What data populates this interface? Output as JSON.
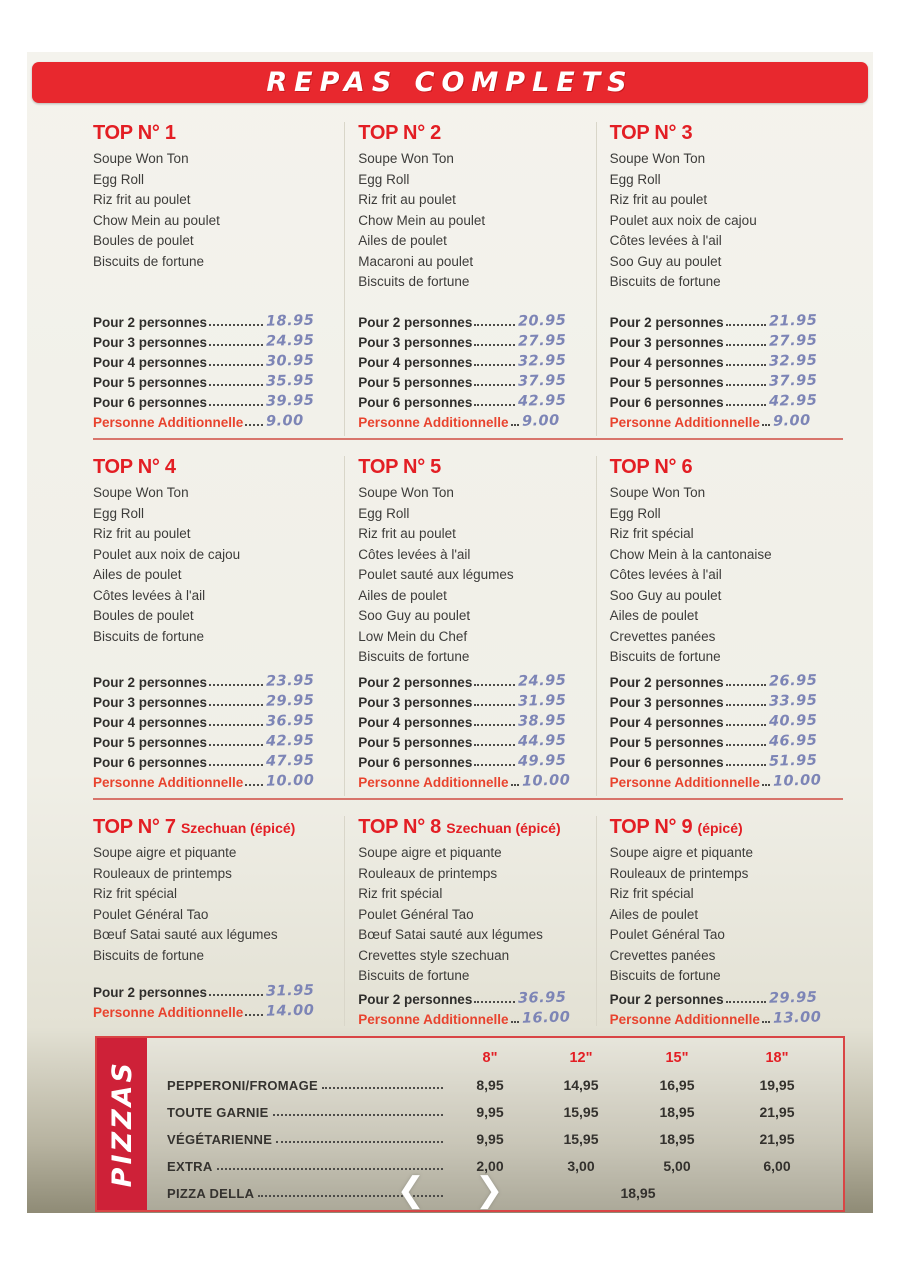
{
  "banner": {
    "title": "REPAS COMPLETS"
  },
  "colors": {
    "banner_red": "#e8282e",
    "accent_red": "#e31e24",
    "handwriting_blue": "#7d85b6",
    "pizza_label_red": "#ce2138"
  },
  "sections": [
    {
      "title": "TOP N° 1",
      "subtitle": "",
      "items": [
        "Soupe Won Ton",
        "Egg Roll",
        "Riz frit au poulet",
        "Chow Mein au poulet",
        "Boules de poulet",
        "Biscuits de fortune"
      ],
      "prices": [
        {
          "label": "Pour 2 personnes",
          "value": "18.95",
          "highlight": false
        },
        {
          "label": "Pour 3 personnes",
          "value": "24.95",
          "highlight": false
        },
        {
          "label": "Pour 4 personnes",
          "value": "30.95",
          "highlight": false
        },
        {
          "label": "Pour 5 personnes",
          "value": "35.95",
          "highlight": false
        },
        {
          "label": "Pour 6 personnes",
          "value": "39.95",
          "highlight": false
        },
        {
          "label": "Personne Additionnelle",
          "value": "9.00",
          "highlight": true
        }
      ]
    },
    {
      "title": "TOP N° 2",
      "subtitle": "",
      "items": [
        "Soupe Won Ton",
        "Egg Roll",
        "Riz frit au poulet",
        "Chow Mein au poulet",
        "Ailes de poulet",
        "Macaroni au poulet",
        "Biscuits de fortune"
      ],
      "prices": [
        {
          "label": "Pour 2 personnes",
          "value": "20.95",
          "highlight": false
        },
        {
          "label": "Pour 3 personnes",
          "value": "27.95",
          "highlight": false
        },
        {
          "label": "Pour 4 personnes",
          "value": "32.95",
          "highlight": false
        },
        {
          "label": "Pour 5 personnes",
          "value": "37.95",
          "highlight": false
        },
        {
          "label": "Pour 6 personnes",
          "value": "42.95",
          "highlight": false
        },
        {
          "label": "Personne Additionnelle",
          "value": "9.00",
          "highlight": true
        }
      ]
    },
    {
      "title": "TOP N° 3",
      "subtitle": "",
      "items": [
        "Soupe Won Ton",
        "Egg Roll",
        "Riz frit au poulet",
        "Poulet aux noix de cajou",
        "Côtes levées à l'ail",
        "Soo Guy au poulet",
        "Biscuits de fortune"
      ],
      "prices": [
        {
          "label": "Pour 2 personnes",
          "value": "21.95",
          "highlight": false
        },
        {
          "label": "Pour 3 personnes",
          "value": "27.95",
          "highlight": false
        },
        {
          "label": "Pour 4 personnes",
          "value": "32.95",
          "highlight": false
        },
        {
          "label": "Pour 5 personnes",
          "value": "37.95",
          "highlight": false
        },
        {
          "label": "Pour 6 personnes",
          "value": "42.95",
          "highlight": false
        },
        {
          "label": "Personne Additionnelle",
          "value": "9.00",
          "highlight": true
        }
      ]
    },
    {
      "title": "TOP N° 4",
      "subtitle": "",
      "items": [
        "Soupe Won Ton",
        "Egg Roll",
        "Riz frit au poulet",
        "Poulet aux noix de cajou",
        "Ailes de poulet",
        "Côtes levées à l'ail",
        "Boules de poulet",
        "Biscuits de fortune"
      ],
      "prices": [
        {
          "label": "Pour 2 personnes",
          "value": "23.95",
          "highlight": false
        },
        {
          "label": "Pour 3 personnes",
          "value": "29.95",
          "highlight": false
        },
        {
          "label": "Pour 4 personnes",
          "value": "36.95",
          "highlight": false
        },
        {
          "label": "Pour 5 personnes",
          "value": "42.95",
          "highlight": false
        },
        {
          "label": "Pour 6 personnes",
          "value": "47.95",
          "highlight": false
        },
        {
          "label": "Personne Additionnelle",
          "value": "10.00",
          "highlight": true
        }
      ]
    },
    {
      "title": "TOP N° 5",
      "subtitle": "",
      "items": [
        "Soupe Won Ton",
        "Egg Roll",
        "Riz frit au poulet",
        "Côtes levées à l'ail",
        "Poulet sauté aux légumes",
        "Ailes de poulet",
        "Soo Guy au poulet",
        "Low Mein du Chef",
        "Biscuits de fortune"
      ],
      "prices": [
        {
          "label": "Pour 2 personnes",
          "value": "24.95",
          "highlight": false
        },
        {
          "label": "Pour 3 personnes",
          "value": "31.95",
          "highlight": false
        },
        {
          "label": "Pour 4 personnes",
          "value": "38.95",
          "highlight": false
        },
        {
          "label": "Pour 5 personnes",
          "value": "44.95",
          "highlight": false
        },
        {
          "label": "Pour 6 personnes",
          "value": "49.95",
          "highlight": false
        },
        {
          "label": "Personne Additionnelle",
          "value": "10.00",
          "highlight": true
        }
      ]
    },
    {
      "title": "TOP N° 6",
      "subtitle": "",
      "items": [
        "Soupe Won Ton",
        "Egg Roll",
        "Riz frit spécial",
        "Chow Mein à la cantonaise",
        "Côtes levées à l'ail",
        "Soo Guy au poulet",
        "Ailes de poulet",
        "Crevettes panées",
        "Biscuits de fortune"
      ],
      "prices": [
        {
          "label": "Pour 2 personnes",
          "value": "26.95",
          "highlight": false
        },
        {
          "label": "Pour 3 personnes",
          "value": "33.95",
          "highlight": false
        },
        {
          "label": "Pour 4 personnes",
          "value": "40.95",
          "highlight": false
        },
        {
          "label": "Pour 5 personnes",
          "value": "46.95",
          "highlight": false
        },
        {
          "label": "Pour 6 personnes",
          "value": "51.95",
          "highlight": false
        },
        {
          "label": "Personne Additionnelle",
          "value": "10.00",
          "highlight": true
        }
      ]
    },
    {
      "title": "TOP N° 7",
      "subtitle": "Szechuan (épicé)",
      "items": [
        "Soupe aigre et piquante",
        "Rouleaux de printemps",
        "Riz frit spécial",
        "Poulet Général Tao",
        "Bœuf Satai sauté aux légumes",
        "Biscuits de fortune"
      ],
      "prices": [
        {
          "label": "Pour 2 personnes",
          "value": "31.95",
          "highlight": false
        },
        {
          "label": "Personne Additionnelle",
          "value": "14.00",
          "highlight": true
        }
      ]
    },
    {
      "title": "TOP N° 8",
      "subtitle": "Szechuan (épicé)",
      "items": [
        "Soupe aigre et piquante",
        "Rouleaux de printemps",
        "Riz frit spécial",
        "Poulet Général Tao",
        "Bœuf Satai sauté aux légumes",
        "Crevettes style szechuan",
        "Biscuits de fortune"
      ],
      "prices": [
        {
          "label": "Pour 2 personnes",
          "value": "36.95",
          "highlight": false
        },
        {
          "label": "Personne Additionnelle",
          "value": "16.00",
          "highlight": true
        }
      ]
    },
    {
      "title": "TOP N° 9",
      "subtitle": "(épicé)",
      "items": [
        "Soupe aigre et piquante",
        "Rouleaux de printemps",
        "Riz frit spécial",
        "Ailes de poulet",
        "Poulet Général Tao",
        "Crevettes panées",
        "Biscuits de fortune"
      ],
      "prices": [
        {
          "label": "Pour 2 personnes",
          "value": "29.95",
          "highlight": false
        },
        {
          "label": "Personne Additionnelle",
          "value": "13.00",
          "highlight": true
        }
      ]
    }
  ],
  "pizzas": {
    "label": "PIZZAS",
    "size_headers": [
      "8\"",
      "12\"",
      "15\"",
      "18\""
    ],
    "rows": [
      {
        "name": "PEPPERONI/FROMAGE",
        "prices": [
          "8,95",
          "14,95",
          "16,95",
          "19,95"
        ]
      },
      {
        "name": "TOUTE GARNIE",
        "prices": [
          "9,95",
          "15,95",
          "18,95",
          "21,95"
        ]
      },
      {
        "name": "VÉGÉTARIENNE",
        "prices": [
          "9,95",
          "15,95",
          "18,95",
          "21,95"
        ]
      },
      {
        "name": "EXTRA",
        "prices": [
          "2,00",
          "3,00",
          "5,00",
          "6,00"
        ]
      },
      {
        "name": "PIZZA DELLA",
        "center_price": "18,95"
      }
    ]
  },
  "nav": {
    "prev_icon": "❮",
    "next_icon": "❯"
  }
}
